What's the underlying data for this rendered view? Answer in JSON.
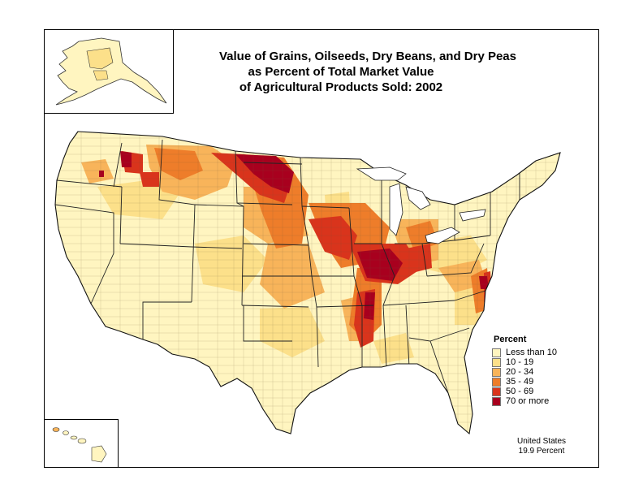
{
  "title": {
    "line1": "Value of Grains, Oilseeds, Dry Beans, and Dry Peas",
    "line2": "as Percent of Total Market Value",
    "line3": "of Agricultural Products Sold:  2002"
  },
  "legend": {
    "title": "Percent",
    "classes": [
      {
        "label": "Less than 10",
        "color": "#FFF5C0"
      },
      {
        "label": "10 - 19",
        "color": "#FCE08A"
      },
      {
        "label": "20 - 34",
        "color": "#F8B45A"
      },
      {
        "label": "35 - 49",
        "color": "#EE7D2A"
      },
      {
        "label": "50 - 69",
        "color": "#D9341C"
      },
      {
        "label": "70 or more",
        "color": "#A8001E"
      }
    ]
  },
  "summary": {
    "line1": "United States",
    "line2": "19.9 Percent"
  },
  "colors": {
    "background": "#FFFFFF",
    "border": "#000000",
    "county_lines": "#6b5a3a"
  }
}
